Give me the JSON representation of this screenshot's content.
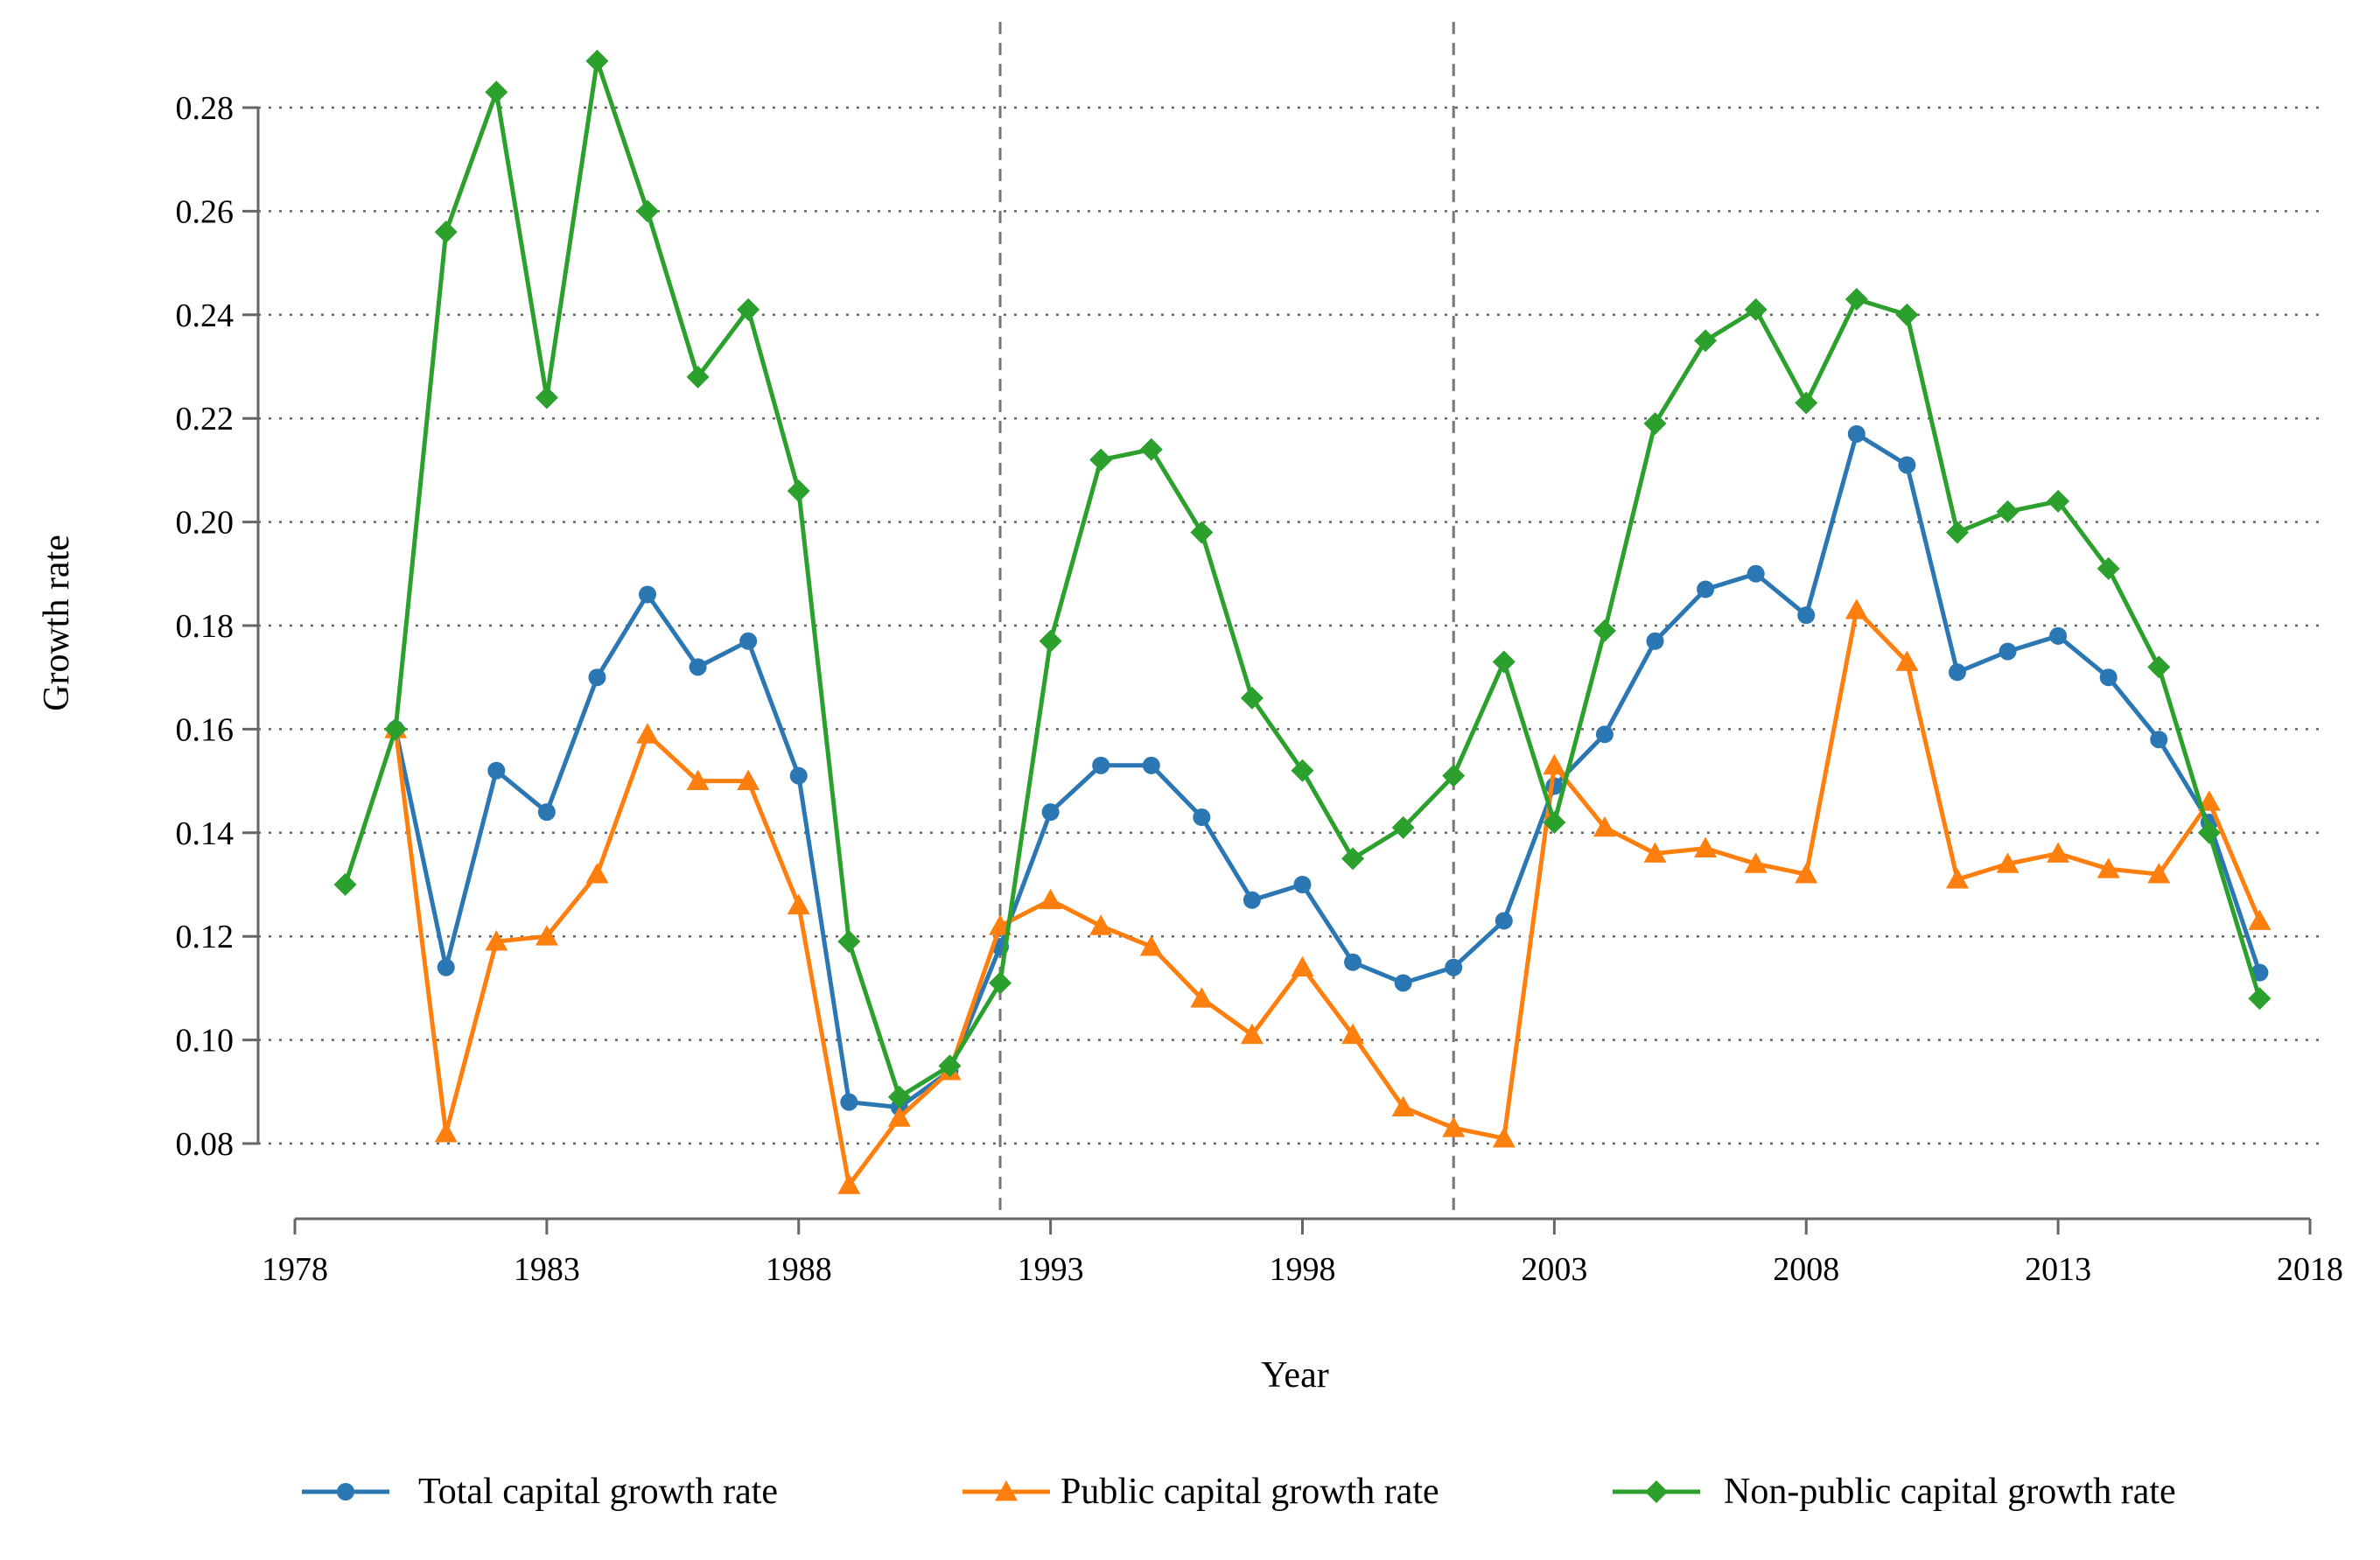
{
  "chart_data": {
    "type": "line",
    "title": "",
    "xlabel": "Year",
    "ylabel": "Growth rate",
    "xlim": [
      1978,
      2018
    ],
    "ylim": [
      0.07,
      0.29
    ],
    "x_ticks": [
      "1978",
      "1983",
      "1988",
      "1993",
      "1998",
      "2003",
      "2008",
      "2013",
      "2018"
    ],
    "y_ticks": [
      "0.08",
      "0.10",
      "0.12",
      "0.14",
      "0.16",
      "0.18",
      "0.20",
      "0.22",
      "0.24",
      "0.26",
      "0.28"
    ],
    "grid": "horizontal dotted",
    "reference_lines_x": [
      1992,
      2001
    ],
    "legend_position": "bottom",
    "series": [
      {
        "name": "Total capital growth rate",
        "color": "#2A77B4",
        "marker": "circle",
        "x": [
          1980,
          1981,
          1982,
          1983,
          1984,
          1985,
          1986,
          1987,
          1988,
          1989,
          1990,
          1991,
          1992,
          1993,
          1994,
          1995,
          1996,
          1997,
          1998,
          1999,
          2000,
          2001,
          2002,
          2003,
          2004,
          2005,
          2006,
          2007,
          2008,
          2009,
          2010,
          2011,
          2012,
          2013,
          2014,
          2015,
          2016,
          2017
        ],
        "values": [
          0.16,
          0.114,
          0.152,
          0.144,
          0.17,
          0.186,
          0.172,
          0.177,
          0.151,
          0.088,
          0.087,
          0.094,
          0.118,
          0.144,
          0.153,
          0.153,
          0.143,
          0.127,
          0.13,
          0.115,
          0.111,
          0.114,
          0.123,
          0.149,
          0.159,
          0.177,
          0.187,
          0.19,
          0.182,
          0.217,
          0.211,
          0.171,
          0.175,
          0.178,
          0.17,
          0.158,
          0.142,
          0.113
        ]
      },
      {
        "name": "Public capital growth rate",
        "color": "#FF7F0E",
        "marker": "triangle",
        "x": [
          1980,
          1981,
          1982,
          1983,
          1984,
          1985,
          1986,
          1987,
          1988,
          1989,
          1990,
          1991,
          1992,
          1993,
          1994,
          1995,
          1996,
          1997,
          1998,
          1999,
          2000,
          2001,
          2002,
          2003,
          2004,
          2005,
          2006,
          2007,
          2008,
          2009,
          2010,
          2011,
          2012,
          2013,
          2014,
          2015,
          2016,
          2017
        ],
        "values": [
          0.16,
          0.082,
          0.119,
          0.12,
          0.132,
          0.159,
          0.15,
          0.15,
          0.126,
          0.072,
          0.085,
          0.094,
          0.122,
          0.127,
          0.122,
          0.118,
          0.108,
          0.101,
          0.114,
          0.101,
          0.087,
          0.083,
          0.081,
          0.153,
          0.141,
          0.136,
          0.137,
          0.134,
          0.132,
          0.183,
          0.173,
          0.131,
          0.134,
          0.136,
          0.133,
          0.132,
          0.146,
          0.123
        ]
      },
      {
        "name": "Non-public capital growth rate",
        "color": "#2CA02C",
        "marker": "diamond",
        "x": [
          1979,
          1980,
          1981,
          1982,
          1983,
          1984,
          1985,
          1986,
          1987,
          1988,
          1989,
          1990,
          1991,
          1992,
          1993,
          1994,
          1995,
          1996,
          1997,
          1998,
          1999,
          2000,
          2001,
          2002,
          2003,
          2004,
          2005,
          2006,
          2007,
          2008,
          2009,
          2010,
          2011,
          2012,
          2013,
          2014,
          2015,
          2016,
          2017
        ],
        "values": [
          0.13,
          0.16,
          0.256,
          0.283,
          0.224,
          0.289,
          0.26,
          0.228,
          0.241,
          0.206,
          0.119,
          0.089,
          0.095,
          0.111,
          0.177,
          0.212,
          0.214,
          0.198,
          0.166,
          0.152,
          0.135,
          0.141,
          0.151,
          0.173,
          0.142,
          0.179,
          0.219,
          0.235,
          0.241,
          0.223,
          0.243,
          0.24,
          0.198,
          0.202,
          0.204,
          0.191,
          0.172,
          0.14,
          0.108
        ]
      }
    ]
  }
}
